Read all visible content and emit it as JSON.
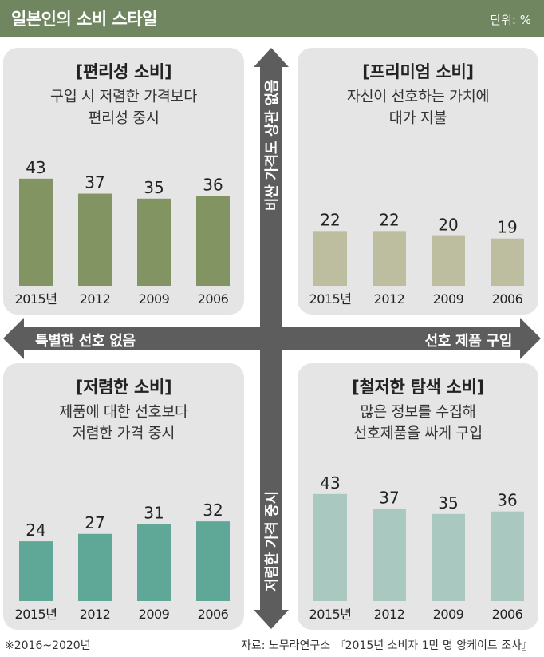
{
  "header": {
    "title": "일본인의 소비 스타일",
    "unit": "단위: %",
    "color": "#6f8660"
  },
  "axes": {
    "left": "특별한 선호 없음",
    "right": "선호 제품 구입",
    "top": "비싼 가격도 상관 없음",
    "bottom": "저렴한 가격 중시",
    "color": "#5d5d5d"
  },
  "panels": {
    "convenience": {
      "title": "[편리성 소비]",
      "description": "구입 시 저렴한 가격보다\n편리성 중시",
      "bar_color": "#829462"
    },
    "premium": {
      "title": "[프리미엄 소비]",
      "description": "자신이 선호하는 가치에\n대가 지불",
      "bar_color": "#bcbe9f"
    },
    "cheap": {
      "title": "[저렴한 소비]",
      "description": "제품에 대한 선호보다\n저렴한 가격 중시",
      "bar_color": "#5fa797"
    },
    "thorough": {
      "title": "[철저한 탐색 소비]",
      "description": "많은 정보를 수집해\n선호제품을 싸게 구입",
      "bar_color": "#a8c8c0"
    }
  },
  "footer": {
    "note": "※2016~2020년",
    "source": "자료: 노무라연구소 『2015년 소비자 1만 명 앙케이트 조사』"
  },
  "chart_data": [
    {
      "type": "bar",
      "title": "[편리성 소비]",
      "categories": [
        "2015년",
        "2012",
        "2009",
        "2006"
      ],
      "values": [
        43,
        37,
        35,
        36
      ]
    },
    {
      "type": "bar",
      "title": "[프리미엄 소비]",
      "categories": [
        "2015년",
        "2012",
        "2009",
        "2006"
      ],
      "values": [
        22,
        22,
        20,
        19
      ]
    },
    {
      "type": "bar",
      "title": "[저렴한 소비]",
      "categories": [
        "2015년",
        "2012",
        "2009",
        "2006"
      ],
      "values": [
        24,
        27,
        31,
        32
      ]
    },
    {
      "type": "bar",
      "title": "[철저한 탐색 소비]",
      "categories": [
        "2015년",
        "2012",
        "2009",
        "2006"
      ],
      "values": [
        43,
        37,
        35,
        36
      ]
    }
  ]
}
